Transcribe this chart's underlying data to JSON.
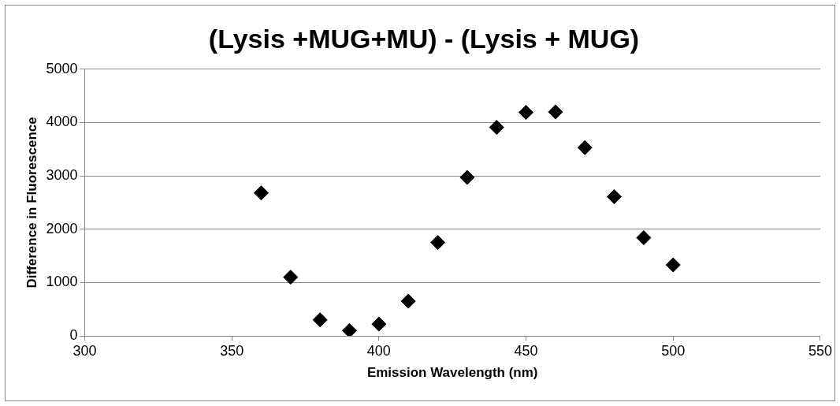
{
  "chart_data": {
    "type": "scatter",
    "title": "(Lysis +MUG+MU) - (Lysis + MUG)",
    "xlabel": "Emission Wavelength (nm)",
    "ylabel": "Difference in Fluorescence",
    "x": [
      360,
      370,
      380,
      390,
      400,
      410,
      420,
      430,
      440,
      450,
      460,
      470,
      480,
      490,
      500
    ],
    "values": [
      2680,
      1100,
      300,
      100,
      220,
      650,
      1750,
      2970,
      3910,
      4190,
      4200,
      3530,
      2610,
      1840,
      1330
    ],
    "color": "#000000",
    "marker": "diamond",
    "xlim": [
      300,
      550
    ],
    "xticks": [
      300,
      350,
      400,
      450,
      500,
      550
    ],
    "ylim": [
      0,
      5000
    ],
    "yticks": [
      0,
      1000,
      2000,
      3000,
      4000,
      5000
    ],
    "grid": "y"
  }
}
